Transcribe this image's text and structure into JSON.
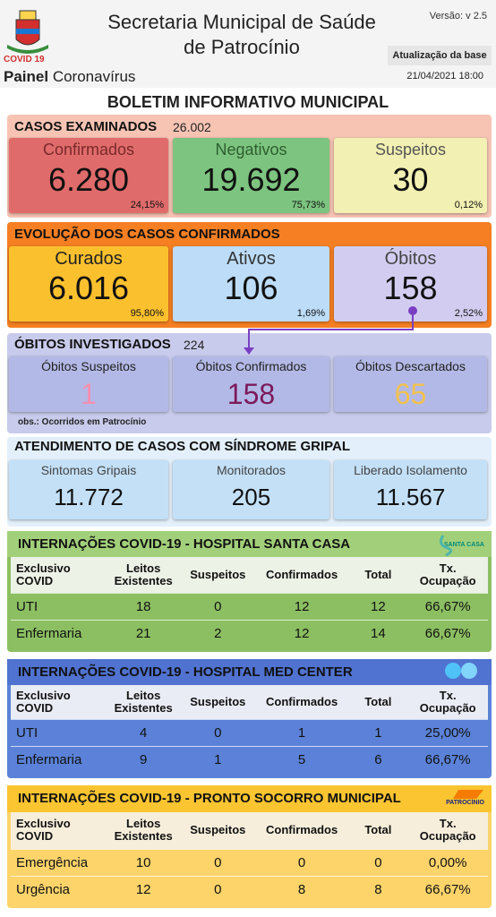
{
  "header": {
    "title_line1": "Secretaria Municipal de Saúde",
    "title_line2": "de Patrocínio",
    "version": "Versão: v 2.5",
    "update_label": "Atualização da base",
    "update_date": "21/04/2021 18:00",
    "logo_caption": "COVID 19",
    "panel_bold": "Painel",
    "panel_rest": "Coronavírus"
  },
  "bulletin_title": "BOLETIM INFORMATIVO MUNICIPAL",
  "examined": {
    "title": "CASOS EXAMINADOS",
    "total": "26.002",
    "cards": [
      {
        "label": "Confirmados",
        "value": "6.280",
        "pct": "24,15%"
      },
      {
        "label": "Negativos",
        "value": "19.692",
        "pct": "75,73%"
      },
      {
        "label": "Suspeitos",
        "value": "30",
        "pct": "0,12%"
      }
    ]
  },
  "evolution": {
    "title": "EVOLUÇÃO DOS CASOS CONFIRMADOS",
    "cards": [
      {
        "label": "Curados",
        "value": "6.016",
        "pct": "95,80%"
      },
      {
        "label": "Ativos",
        "value": "106",
        "pct": "1,69%"
      },
      {
        "label": "Óbitos",
        "value": "158",
        "pct": "2,52%"
      }
    ]
  },
  "deaths": {
    "title": "ÓBITOS INVESTIGADOS",
    "total": "224",
    "note": "obs.: Ocorridos em Patrocínio",
    "cards": [
      {
        "label": "Óbitos Suspeitos",
        "value": "1"
      },
      {
        "label": "Óbitos Confirmados",
        "value": "158"
      },
      {
        "label": "Óbitos Descartados",
        "value": "65"
      }
    ]
  },
  "syndrome": {
    "title": "ATENDIMENTO DE CASOS COM SÍNDROME GRIPAL",
    "cards": [
      {
        "label": "Sintomas Gripais",
        "value": "11.772"
      },
      {
        "label": "Monitorados",
        "value": "205"
      },
      {
        "label": "Liberado Isolamento",
        "value": "11.567"
      }
    ]
  },
  "hospitals": [
    {
      "title": "INTERNAÇÕES COVID-19 - HOSPITAL SANTA CASA",
      "logo_text": "SANTA CASA",
      "header": [
        "Exclusivo COVID",
        "Leitos Existentes",
        "Suspeitos",
        "Confirmados",
        "Total",
        "Tx. Ocupação"
      ],
      "rows": [
        [
          "UTI",
          18,
          0,
          12,
          12,
          "66,67%"
        ],
        [
          "Enfermaria",
          21,
          2,
          12,
          14,
          "66,67%"
        ]
      ]
    },
    {
      "title": "INTERNAÇÕES COVID-19 - HOSPITAL MED CENTER",
      "header": [
        "Exclusivo COVID",
        "Leitos Existentes",
        "Suspeitos",
        "Confirmados",
        "Total",
        "Tx. Ocupação"
      ],
      "rows": [
        [
          "UTI",
          4,
          0,
          1,
          1,
          "25,00%"
        ],
        [
          "Enfermaria",
          9,
          1,
          5,
          6,
          "66,67%"
        ]
      ]
    },
    {
      "title": "INTERNAÇÕES COVID-19 - PRONTO SOCORRO MUNICIPAL",
      "logo_text": "PATROCÍNIO",
      "header": [
        "Exclusivo COVID",
        "Leitos Existentes",
        "Suspeitos",
        "Confirmados",
        "Total",
        "Tx. Ocupação"
      ],
      "rows": [
        [
          "Emergência",
          10,
          0,
          0,
          0,
          "0,00%"
        ],
        [
          "Urgência",
          12,
          0,
          8,
          8,
          "66,67%"
        ]
      ]
    }
  ]
}
